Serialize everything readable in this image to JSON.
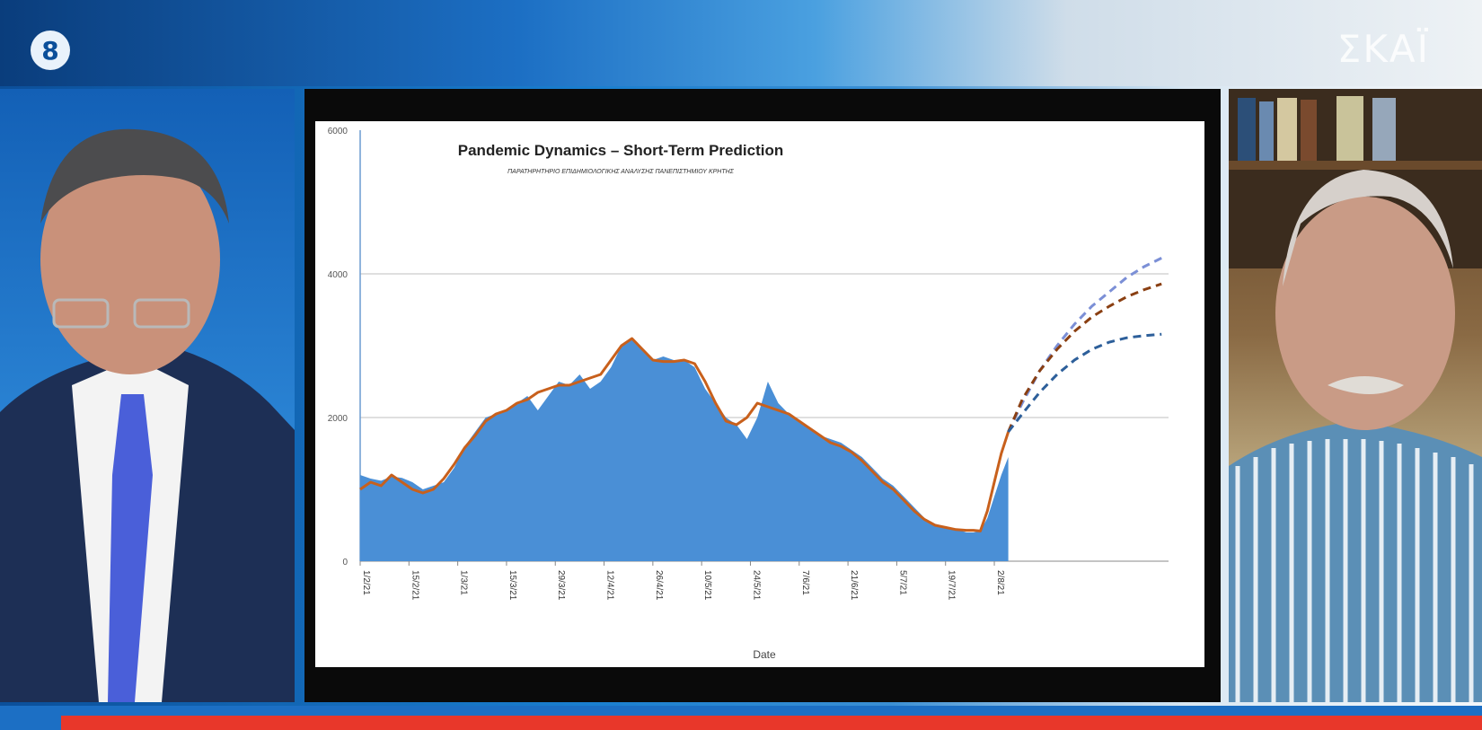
{
  "broadcast": {
    "channel_logo": "8",
    "brand": "ΣΚΑΪ"
  },
  "chart_data": {
    "type": "area",
    "title": "Pandemic Dynamics – Short-Term Prediction",
    "subtitle": "ΠΑΡΑΤΗΡΗΤΗΡΙΟ ΕΠΙΔΗΜΙΟΛΟΓΙΚΗΣ ΑΝΑΛΥΣΗΣ ΠΑΝΕΠΙΣΤΗΜΙΟΥ ΚΡΗΤΗΣ",
    "xlabel": "Date",
    "ylabel": "",
    "ylim": [
      0,
      6000
    ],
    "y_ticks": [
      "0",
      "2000",
      "4000",
      "6000"
    ],
    "x_tick_labels": [
      "1/2/21",
      "15/2/21",
      "1/3/21",
      "15/3/21",
      "29/3/21",
      "12/4/21",
      "26/4/21",
      "10/5/21",
      "24/5/21",
      "7/6/21",
      "21/6/21",
      "5/7/21",
      "19/7/21",
      "2/8/21"
    ],
    "grid": true,
    "x_domain_days": [
      0,
      186
    ],
    "series": [
      {
        "kind": "area",
        "color": "#4a8fd6",
        "x": [
          0,
          3,
          6,
          9,
          12,
          15,
          18,
          21,
          24,
          27,
          30,
          33,
          36,
          39,
          42,
          45,
          48,
          51,
          54,
          57,
          60,
          63,
          66,
          69,
          72,
          75,
          78,
          81,
          84,
          87,
          90,
          93,
          96,
          99,
          102,
          105,
          108,
          111,
          114,
          117,
          120,
          123,
          126,
          129,
          132,
          135,
          138,
          141,
          144,
          147,
          150,
          153,
          156,
          159,
          162,
          165,
          168,
          171,
          174,
          176,
          178,
          180,
          182,
          184,
          186
        ],
        "y": [
          1200,
          1150,
          1120,
          1180,
          1160,
          1100,
          1000,
          1050,
          1100,
          1300,
          1600,
          1800,
          2000,
          2050,
          2100,
          2200,
          2300,
          2100,
          2300,
          2500,
          2450,
          2600,
          2400,
          2500,
          2700,
          3000,
          3100,
          2950,
          2800,
          2850,
          2800,
          2800,
          2700,
          2400,
          2200,
          2000,
          1900,
          1700,
          2000,
          2500,
          2200,
          2050,
          1950,
          1850,
          1750,
          1700,
          1650,
          1550,
          1450,
          1300,
          1150,
          1050,
          900,
          750,
          600,
          520,
          480,
          450,
          400,
          400,
          420,
          600,
          900,
          1200,
          1450
        ]
      },
      {
        "kind": "line",
        "color": "#c8601c",
        "x": [
          0,
          3,
          6,
          9,
          12,
          15,
          18,
          21,
          24,
          27,
          30,
          33,
          36,
          39,
          42,
          45,
          48,
          51,
          54,
          57,
          60,
          63,
          66,
          69,
          72,
          75,
          78,
          81,
          84,
          87,
          90,
          93,
          96,
          99,
          102,
          105,
          108,
          111,
          114,
          117,
          120,
          123,
          126,
          129,
          132,
          135,
          138,
          141,
          144,
          147,
          150,
          153,
          156,
          159,
          162,
          165,
          168,
          171,
          174,
          176,
          178,
          180,
          182,
          184,
          186
        ],
        "y": [
          1000,
          1100,
          1050,
          1200,
          1100,
          1000,
          950,
          1000,
          1150,
          1350,
          1580,
          1750,
          1950,
          2050,
          2100,
          2200,
          2250,
          2350,
          2400,
          2450,
          2450,
          2500,
          2550,
          2600,
          2800,
          3000,
          3100,
          2950,
          2800,
          2780,
          2780,
          2800,
          2750,
          2500,
          2200,
          1950,
          1900,
          2000,
          2200,
          2150,
          2100,
          2050,
          1950,
          1850,
          1750,
          1650,
          1600,
          1520,
          1400,
          1250,
          1100,
          1000,
          850,
          700,
          580,
          500,
          470,
          440,
          430,
          430,
          420,
          700,
          1100,
          1500,
          1800
        ]
      },
      {
        "kind": "dashed",
        "color": "#7b8fd6",
        "x": [
          186,
          190,
          195,
          200,
          205,
          210,
          215,
          220,
          225,
          230
        ],
        "y": [
          1800,
          2200,
          2650,
          3000,
          3300,
          3550,
          3750,
          3950,
          4100,
          4220
        ]
      },
      {
        "kind": "dashed",
        "color": "#8a3f12",
        "x": [
          186,
          190,
          195,
          200,
          205,
          210,
          215,
          220,
          225,
          230
        ],
        "y": [
          1800,
          2250,
          2650,
          2950,
          3200,
          3400,
          3550,
          3680,
          3780,
          3860
        ]
      },
      {
        "kind": "dashed",
        "color": "#2d5f9a",
        "x": [
          186,
          190,
          195,
          200,
          205,
          210,
          215,
          220,
          225,
          230
        ],
        "y": [
          1800,
          2050,
          2350,
          2600,
          2800,
          2950,
          3050,
          3110,
          3140,
          3160
        ]
      }
    ]
  }
}
